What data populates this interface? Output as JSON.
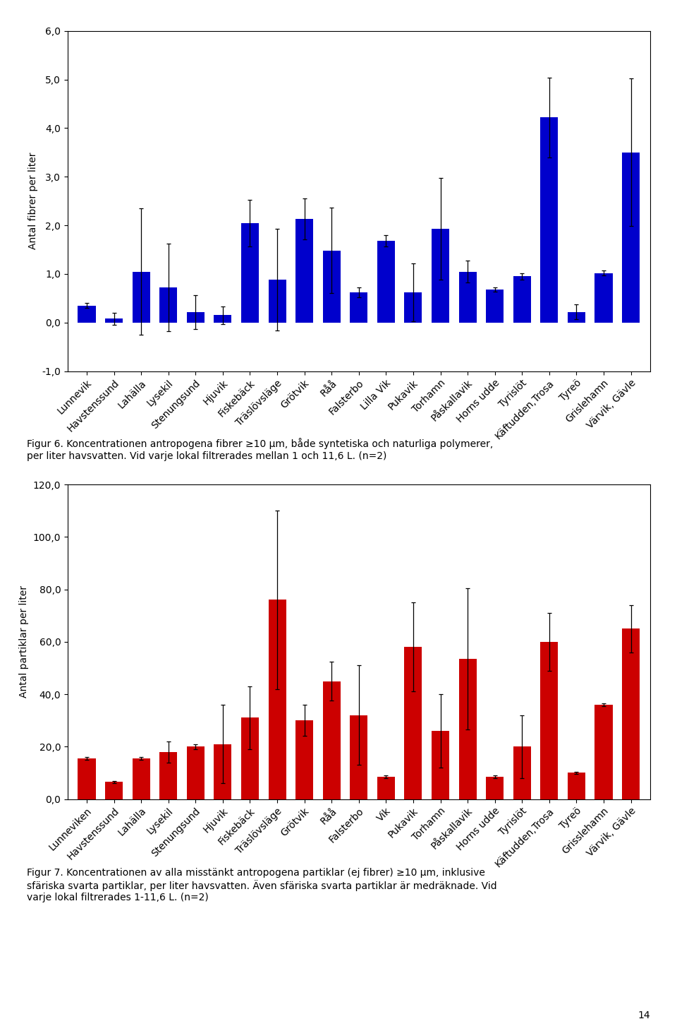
{
  "chart_data": [
    {
      "type": "bar",
      "categories": [
        "Lunnevik",
        "Havstenssund",
        "Lahälla",
        "Lysekil",
        "Stenungsund",
        "Hjuvik",
        "Fiskebäck",
        "Träslövsläge",
        "Grötvik",
        "Råå",
        "Falsterbo",
        "Lilla Vik",
        "Pukavik",
        "Torhamn",
        "Påskallavik",
        "Horns udde",
        "Tyrislöt",
        "Käftudden,Trosa",
        "Tyreö",
        "Grislehamn",
        "Värvik, Gävle"
      ],
      "values": [
        0.35,
        0.08,
        1.05,
        0.72,
        0.22,
        0.15,
        2.05,
        0.88,
        2.13,
        1.48,
        0.62,
        1.68,
        0.62,
        1.93,
        1.05,
        0.68,
        0.95,
        4.22,
        0.22,
        1.02,
        3.5
      ],
      "errors": [
        0.05,
        0.12,
        1.3,
        0.9,
        0.35,
        0.18,
        0.48,
        1.05,
        0.42,
        0.88,
        0.1,
        0.12,
        0.6,
        1.05,
        0.22,
        0.05,
        0.07,
        0.82,
        0.15,
        0.05,
        1.52
      ],
      "color": "#0000CC",
      "ylabel": "Antal fibrer per liter",
      "ylim": [
        -1.0,
        6.0
      ],
      "yticks": [
        {
          "value": -1.0,
          "label": "-1,0"
        },
        {
          "value": 0.0,
          "label": "0,0"
        },
        {
          "value": 1.0,
          "label": "1,0"
        },
        {
          "value": 2.0,
          "label": "2,0"
        },
        {
          "value": 3.0,
          "label": "3,0"
        },
        {
          "value": 4.0,
          "label": "4,0"
        },
        {
          "value": 5.0,
          "label": "5,0"
        },
        {
          "value": 6.0,
          "label": "6,0"
        }
      ],
      "annotations": [
        "Figur 6. Koncentrationen antropogena fibrer ≥10 μm, både syntetiska och naturliga polymerer,\nper liter havsvatten. Vid varje lokal filtrerades mellan 1 och 11,6 L. (n=2)"
      ]
    },
    {
      "type": "bar",
      "categories": [
        "Lunneviken",
        "Havstenssund",
        "Lahälla",
        "Lysekil",
        "Stenungsund",
        "Hjuvik",
        "Fiskebäck",
        "Träslövsläge",
        "Grötvik",
        "Råå",
        "Falsterbo",
        "Vik",
        "Pukavik",
        "Torhamn",
        "Påskallavik",
        "Horns udde",
        "Tyrislöt",
        "Käftudden,Trosa",
        "Tyreö",
        "Grisslehamn",
        "Värvik, Gävle"
      ],
      "values": [
        15.5,
        6.5,
        15.5,
        18.0,
        20.0,
        21.0,
        31.0,
        76.0,
        30.0,
        45.0,
        32.0,
        8.5,
        58.0,
        26.0,
        53.5,
        8.5,
        20.0,
        60.0,
        10.0,
        36.0,
        65.0
      ],
      "errors": [
        0.5,
        0.5,
        0.5,
        4.0,
        1.0,
        15.0,
        12.0,
        34.0,
        6.0,
        7.5,
        19.0,
        0.5,
        17.0,
        14.0,
        27.0,
        0.5,
        12.0,
        11.0,
        0.5,
        0.5,
        9.0
      ],
      "color": "#CC0000",
      "ylabel": "Antal partiklar per liter",
      "ylim": [
        0,
        120.0
      ],
      "yticks": [
        {
          "value": 0.0,
          "label": "0,0"
        },
        {
          "value": 20.0,
          "label": "20,0"
        },
        {
          "value": 40.0,
          "label": "40,0"
        },
        {
          "value": 60.0,
          "label": "60,0"
        },
        {
          "value": 80.0,
          "label": "80,0"
        },
        {
          "value": 100.0,
          "label": "100,0"
        },
        {
          "value": 120.0,
          "label": "120,0"
        }
      ],
      "annotations": [
        "Figur 7. Koncentrationen av alla misstänkt antropogena partiklar (ej fibrer) ≥10 μm, inklusive\nsfäriska svarta partiklar, per liter havsvatten. Även sfäriska svarta partiklar är medräknade. Vid\nvarje lokal filtrerades 1-11,6 L. (n=2)",
        "14"
      ]
    }
  ]
}
